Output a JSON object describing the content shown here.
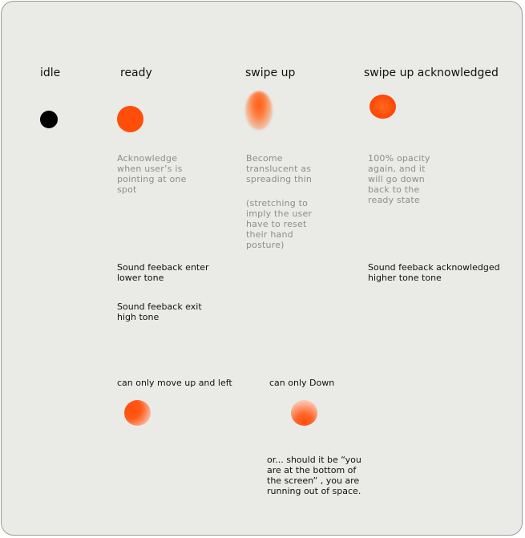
{
  "states": {
    "idle": "idle",
    "ready": "ready",
    "swipe_up": "swipe up",
    "swipe_up_ack": "swipe up acknowledged"
  },
  "notes": {
    "ready": "Acknowledge\nwhen user’s is\npointing at one\nspot",
    "swipe_up_1": "Become\ntranslucent as\nspreading thin",
    "swipe_up_2": "(stretching to\nimply the user\nhave to reset\ntheir hand\nposture)",
    "ack": "100% opacity\nagain, and it\nwill go down\nback to the\nready state"
  },
  "sound": {
    "enter": "Sound feeback enter\nlower tone",
    "exit": "Sound feeback exit\nhigh tone",
    "ack": "Sound feeback acknowledged\nhigher tone tone"
  },
  "constraints": {
    "up_left": "can only move up and left",
    "down": "can only Down",
    "question": "or... should it be “you\nare at the bottom of\nthe screen” , you are\nrunning out of space."
  },
  "colors": {
    "accent": "#ff4d0a",
    "idle": "#000000",
    "background": "#eaebe6"
  }
}
